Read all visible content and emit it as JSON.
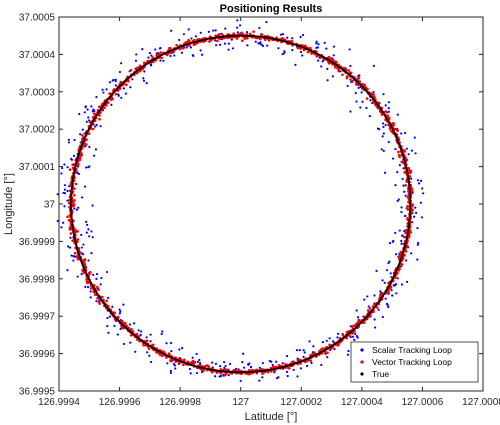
{
  "chart_data": {
    "type": "scatter",
    "title": "Positioning Results",
    "xlabel": "Latitude [°]",
    "ylabel": "Longitude [°]",
    "xlim": [
      126.9994,
      127.0008
    ],
    "ylim": [
      36.9995,
      37.0005
    ],
    "xticks": [
      "126.9994",
      "126.9996",
      "126.9998",
      "127",
      "127.0002",
      "127.0004",
      "127.0006",
      "127.0008"
    ],
    "yticks": [
      "36.9995",
      "36.9996",
      "36.9997",
      "36.9998",
      "36.9999",
      "37",
      "37.0001",
      "37.0002",
      "37.0003",
      "37.0004",
      "37.0005"
    ],
    "grid": false,
    "legend_position": "bottom-right",
    "circle": {
      "center_x": 127.0,
      "center_y": 37.0,
      "radius_x": 0.00056,
      "radius_y": 0.00045
    },
    "series": [
      {
        "name": "Scalar Tracking Loop",
        "color": "#0000ff",
        "marker": "dot",
        "noise_x": 2.5e-05,
        "noise_y": 2e-05,
        "count": 650
      },
      {
        "name": "Vector Tracking Loop",
        "color": "#ff0000",
        "marker": "dot",
        "noise_x": 5e-06,
        "noise_y": 4e-06,
        "count": 1600
      },
      {
        "name": "True",
        "color": "#000000",
        "marker": "dot",
        "noise_x": 0.0,
        "noise_y": 0.0,
        "count": 900
      }
    ]
  }
}
